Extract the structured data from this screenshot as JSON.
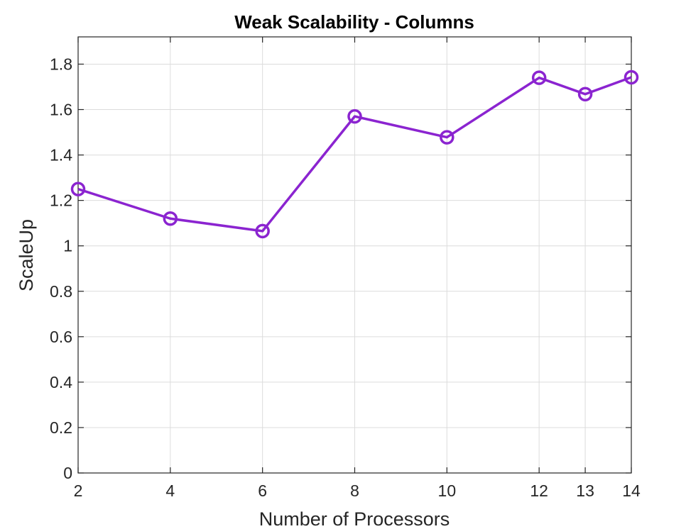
{
  "chart_data": {
    "type": "line",
    "title": "Weak Scalability - Columns",
    "xlabel": "Number of Processors",
    "ylabel": "ScaleUp",
    "x": [
      2,
      4,
      6,
      8,
      10,
      12,
      13,
      14
    ],
    "series": [
      {
        "values": [
          1.25,
          1.12,
          1.065,
          1.57,
          1.478,
          1.74,
          1.668,
          1.742
        ],
        "color": "#8b24d0",
        "marker": "circle"
      }
    ],
    "xticks": [
      2,
      4,
      6,
      8,
      10,
      12,
      13,
      14
    ],
    "xtick_labels": [
      "2",
      "4",
      "6",
      "8",
      "10",
      "12",
      "13",
      "14"
    ],
    "yticks": [
      0,
      0.2,
      0.4,
      0.6,
      0.8,
      1,
      1.2,
      1.4,
      1.6,
      1.8
    ],
    "ytick_labels": [
      "0",
      "0.2",
      "0.4",
      "0.6",
      "0.8",
      "1",
      "1.2",
      "1.4",
      "1.6",
      "1.8"
    ],
    "xlim": [
      2,
      14
    ],
    "ylim": [
      0,
      1.92
    ],
    "grid": true,
    "legend": "none"
  }
}
